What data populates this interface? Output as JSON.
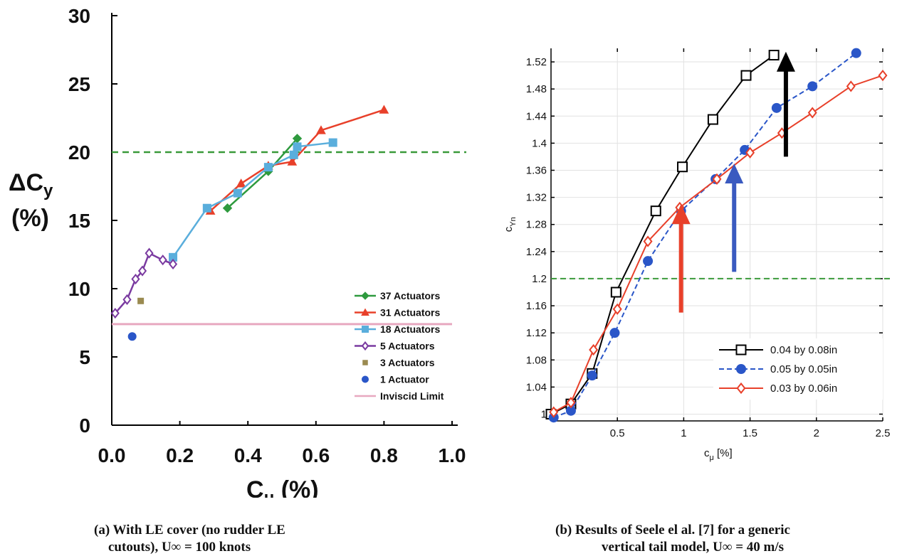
{
  "chart_data": [
    {
      "type": "line",
      "panel": "a",
      "caption_line1": "(a) With LE cover (no rudder LE",
      "caption_line2": "cutouts), U∞ = 100 knots",
      "xlabel_main": "C",
      "xlabel_sub": "μ",
      "xlabel_suffix": " (%)",
      "ylabel_line1_main": "ΔC",
      "ylabel_line1_sub": "y",
      "ylabel_line2": "(%)",
      "xlim": [
        0.0,
        1.0
      ],
      "ylim": [
        0,
        30
      ],
      "xticks": [
        0.0,
        0.2,
        0.4,
        0.6,
        0.8,
        1.0
      ],
      "xtick_labels": [
        "0.0",
        "0.2",
        "0.4",
        "0.6",
        "0.8",
        "1.0"
      ],
      "yticks": [
        0,
        5,
        10,
        15,
        20,
        25,
        30
      ],
      "ytick_labels": [
        "0",
        "5",
        "10",
        "15",
        "20",
        "25",
        "30"
      ],
      "grid": false,
      "legend_position": "bottom-right",
      "reference_lines": [
        {
          "kind": "horizontal",
          "y": 20,
          "style": "dashed",
          "color": "#3a9a3a"
        }
      ],
      "series": [
        {
          "name": "37 Actuators",
          "marker": "diamond-filled",
          "color": "#2e9a3e",
          "line": true,
          "x": [
            0.34,
            0.46,
            0.545
          ],
          "y": [
            15.9,
            18.6,
            21.0
          ]
        },
        {
          "name": "31 Actuators",
          "marker": "triangle",
          "color": "#e8402a",
          "line": true,
          "x": [
            0.29,
            0.38,
            0.46,
            0.53,
            0.615,
            0.8
          ],
          "y": [
            15.7,
            17.7,
            19.0,
            19.3,
            21.6,
            23.1
          ]
        },
        {
          "name": "18 Actuators",
          "marker": "square",
          "color": "#5aaedc",
          "line": true,
          "x": [
            0.18,
            0.28,
            0.37,
            0.46,
            0.535,
            0.545,
            0.65
          ],
          "y": [
            12.3,
            15.9,
            17.0,
            18.9,
            19.8,
            20.4,
            20.7
          ]
        },
        {
          "name": "5 Actuators",
          "marker": "diamond-open",
          "color": "#7a3aa0",
          "line": true,
          "x": [
            0.01,
            0.045,
            0.07,
            0.09,
            0.11,
            0.15,
            0.18
          ],
          "y": [
            8.2,
            9.2,
            10.7,
            11.3,
            12.6,
            12.1,
            11.8
          ]
        },
        {
          "name": "3 Actuators",
          "marker": "square-small",
          "color": "#9a8a50",
          "line": false,
          "x": [
            0.085
          ],
          "y": [
            9.1
          ]
        },
        {
          "name": "1 Actuator",
          "marker": "circle",
          "color": "#2a56c8",
          "line": false,
          "x": [
            0.06
          ],
          "y": [
            6.5
          ]
        },
        {
          "name": "Inviscid Limit",
          "marker": "none",
          "color": "#e8a8c0",
          "line": true,
          "x": [
            0.0,
            1.0
          ],
          "y": [
            7.4,
            7.4
          ]
        }
      ]
    },
    {
      "type": "line",
      "panel": "b",
      "caption_line1": "(b) Results of Seele el al. [7] for a generic",
      "caption_line2": "vertical tail model, U∞ = 40 m/s",
      "xlabel_main": "c",
      "xlabel_sub": "μ",
      "xlabel_suffix": " [%]",
      "ylabel_main": "c",
      "ylabel_sub": "Yn",
      "xlim": [
        0,
        2.5
      ],
      "ylim": [
        0.99,
        1.54
      ],
      "xticks": [
        0.5,
        1,
        1.5,
        2,
        2.5
      ],
      "xtick_labels": [
        "0.5",
        "1",
        "1.5",
        "2",
        "2.5"
      ],
      "yticks": [
        1.0,
        1.04,
        1.08,
        1.12,
        1.16,
        1.2,
        1.24,
        1.28,
        1.32,
        1.36,
        1.4,
        1.44,
        1.48,
        1.52
      ],
      "ytick_labels": [
        "1",
        "1.04",
        "1.08",
        "1.12",
        "1.16",
        "1.2",
        "1.24",
        "1.28",
        "1.32",
        "1.36",
        "1.4",
        "1.44",
        "1.48",
        "1.52"
      ],
      "grid": true,
      "legend_position": "bottom-right",
      "reference_lines": [
        {
          "kind": "horizontal",
          "y": 1.2,
          "style": "dashed",
          "color": "#3a9a3a"
        }
      ],
      "arrows": [
        {
          "x": 0.98,
          "y_from": 1.15,
          "y_to": 1.31,
          "color": "#e8402a"
        },
        {
          "x": 1.38,
          "y_from": 1.21,
          "y_to": 1.37,
          "color": "#3a5ac0"
        },
        {
          "x": 1.77,
          "y_from": 1.38,
          "y_to": 1.535,
          "color": "#000000"
        }
      ],
      "series": [
        {
          "name": "0.04 by 0.08in",
          "marker": "square-open",
          "color": "#000000",
          "style": "solid",
          "x": [
            0.0,
            0.15,
            0.31,
            0.49,
            0.79,
            0.99,
            1.22,
            1.47,
            1.68
          ],
          "y": [
            1.0,
            1.015,
            1.06,
            1.18,
            1.3,
            1.365,
            1.435,
            1.5,
            1.53
          ]
        },
        {
          "name": "0.05 by 0.05in",
          "marker": "circle-filled",
          "color": "#2a56c8",
          "style": "dashed",
          "x": [
            0.02,
            0.15,
            0.31,
            0.48,
            0.73,
            0.98,
            1.24,
            1.46,
            1.7,
            1.97,
            2.3
          ],
          "y": [
            0.995,
            1.005,
            1.057,
            1.12,
            1.226,
            1.3,
            1.347,
            1.39,
            1.452,
            1.484,
            1.533
          ]
        },
        {
          "name": "0.03 by 0.06in",
          "marker": "diamond-open",
          "color": "#e8402a",
          "style": "solid",
          "x": [
            0.02,
            0.15,
            0.32,
            0.5,
            0.73,
            0.97,
            1.25,
            1.5,
            1.74,
            1.97,
            2.26,
            2.5
          ],
          "y": [
            1.003,
            1.017,
            1.095,
            1.155,
            1.255,
            1.305,
            1.347,
            1.386,
            1.415,
            1.445,
            1.484,
            1.5
          ]
        }
      ]
    }
  ]
}
